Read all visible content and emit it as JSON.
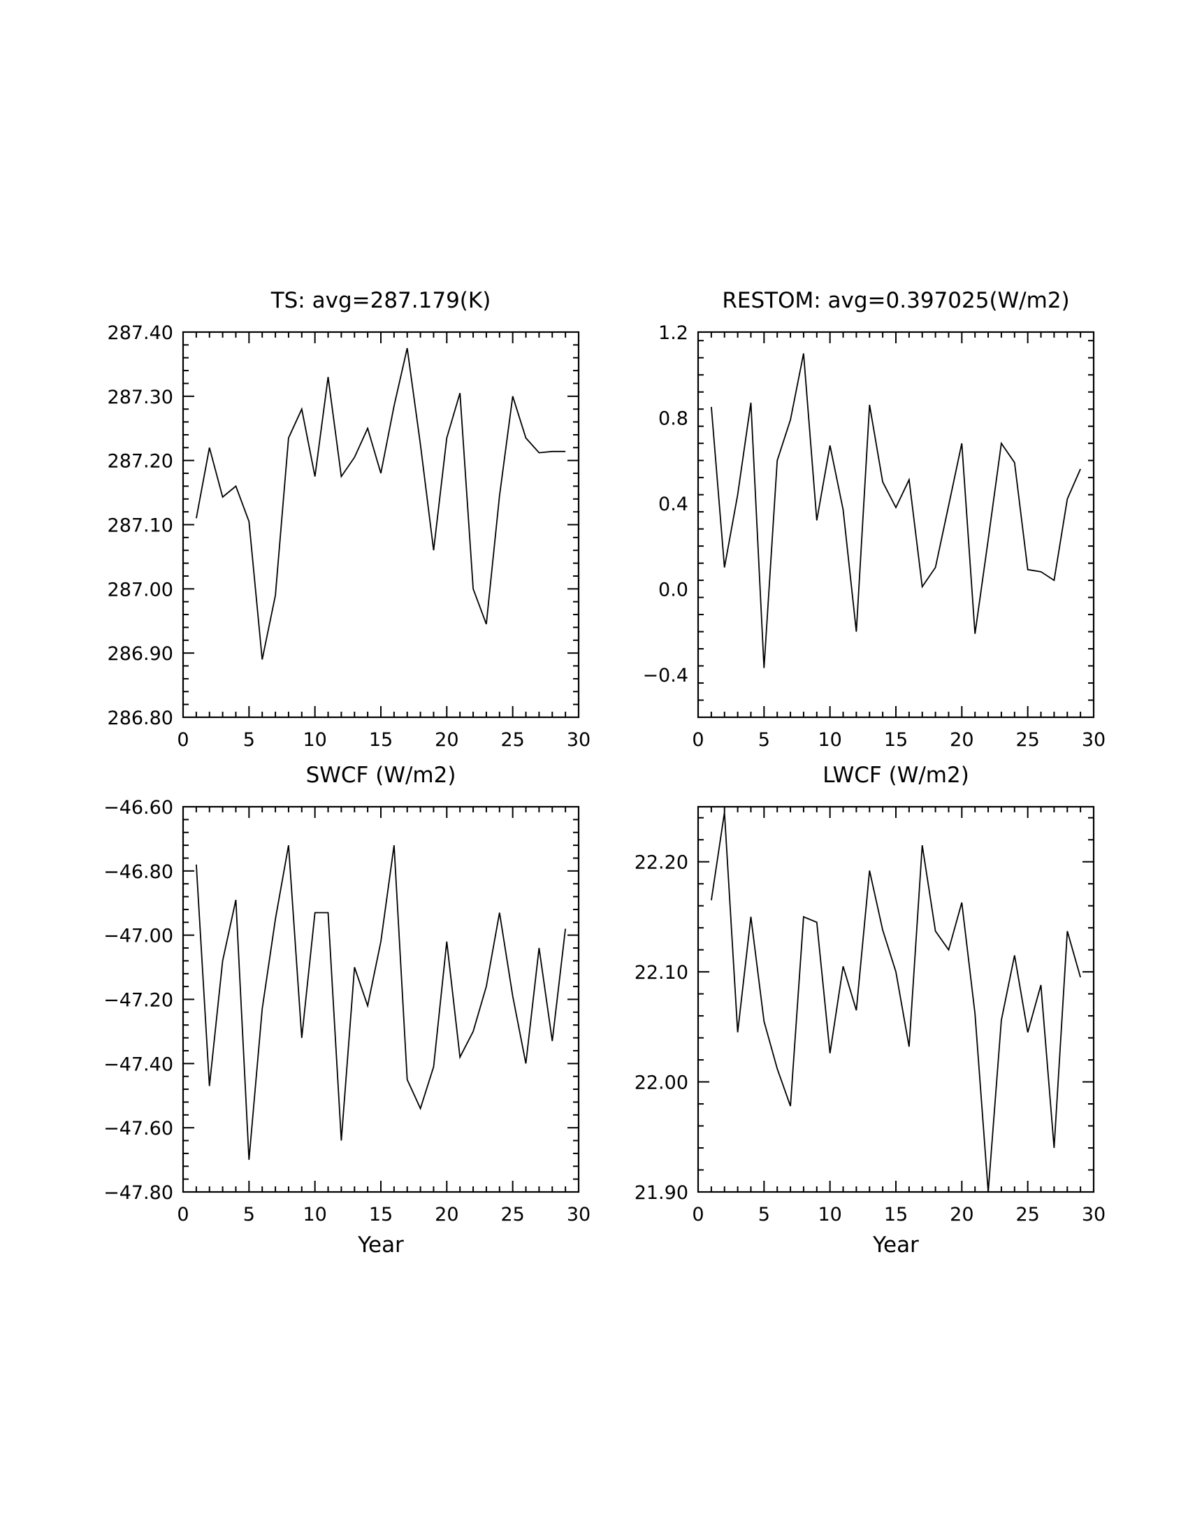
{
  "chart_data": [
    {
      "type": "line",
      "title": "TS: avg=287.179(K)",
      "xlabel": "",
      "ylabel": "",
      "xlim": [
        0,
        30
      ],
      "ylim": [
        286.8,
        287.4
      ],
      "xticks": [
        0,
        5,
        10,
        15,
        20,
        25,
        30
      ],
      "xtick_labels": [
        "0",
        "5",
        "10",
        "15",
        "20",
        "25",
        "30"
      ],
      "yticks": [
        286.8,
        286.9,
        287.0,
        287.1,
        287.2,
        287.3,
        287.4
      ],
      "ytick_labels": [
        "286.80",
        "286.90",
        "287.00",
        "287.10",
        "287.20",
        "287.30",
        "287.40"
      ],
      "x": [
        1,
        2,
        3,
        4,
        5,
        6,
        7,
        8,
        9,
        10,
        11,
        12,
        13,
        14,
        15,
        16,
        17,
        18,
        19,
        20,
        21,
        22,
        23,
        24,
        25,
        26,
        27,
        28,
        29
      ],
      "series": [
        {
          "name": "TS",
          "values": [
            287.11,
            287.22,
            287.143,
            287.16,
            287.105,
            286.89,
            286.99,
            287.235,
            287.28,
            287.175,
            287.33,
            287.175,
            287.205,
            287.25,
            287.18,
            287.285,
            287.375,
            287.225,
            287.06,
            287.235,
            287.305,
            287.0,
            286.945,
            287.145,
            287.3,
            287.235,
            287.212,
            287.214,
            287.214
          ]
        }
      ]
    },
    {
      "type": "line",
      "title": "RESTOM: avg=0.397025(W/m2)",
      "xlabel": "",
      "ylabel": "",
      "xlim": [
        0,
        30
      ],
      "ylim": [
        -0.6,
        1.2
      ],
      "xticks": [
        0,
        5,
        10,
        15,
        20,
        25,
        30
      ],
      "xtick_labels": [
        "0",
        "5",
        "10",
        "15",
        "20",
        "25",
        "30"
      ],
      "yticks": [
        -0.4,
        0.0,
        0.4,
        0.8,
        1.2
      ],
      "ytick_labels": [
        "−0.4",
        "0.0",
        "0.4",
        "0.8",
        "1.2"
      ],
      "x": [
        1,
        2,
        3,
        4,
        5,
        6,
        7,
        8,
        9,
        10,
        11,
        12,
        13,
        14,
        15,
        16,
        17,
        18,
        19,
        20,
        21,
        22,
        23,
        24,
        25,
        26,
        27,
        28,
        29
      ],
      "series": [
        {
          "name": "RESTOM",
          "values": [
            0.85,
            0.1,
            0.44,
            0.87,
            -0.37,
            0.6,
            0.79,
            1.1,
            0.32,
            0.67,
            0.37,
            -0.2,
            0.86,
            0.5,
            0.38,
            0.51,
            0.01,
            0.1,
            0.39,
            0.68,
            -0.21,
            0.23,
            0.68,
            0.59,
            0.09,
            0.08,
            0.04,
            0.42,
            0.56
          ]
        }
      ]
    },
    {
      "type": "line",
      "title": "SWCF (W/m2)",
      "xlabel": "Year",
      "ylabel": "",
      "xlim": [
        0,
        30
      ],
      "ylim": [
        -47.8,
        -46.6
      ],
      "xticks": [
        0,
        5,
        10,
        15,
        20,
        25,
        30
      ],
      "xtick_labels": [
        "0",
        "5",
        "10",
        "15",
        "20",
        "25",
        "30"
      ],
      "yticks": [
        -47.8,
        -47.6,
        -47.4,
        -47.2,
        -47.0,
        -46.8,
        -46.6
      ],
      "ytick_labels": [
        "−47.80",
        "−47.60",
        "−47.40",
        "−47.20",
        "−47.00",
        "−46.80",
        "−46.60"
      ],
      "x": [
        1,
        2,
        3,
        4,
        5,
        6,
        7,
        8,
        9,
        10,
        11,
        12,
        13,
        14,
        15,
        16,
        17,
        18,
        19,
        20,
        21,
        22,
        23,
        24,
        25,
        26,
        27,
        28,
        29
      ],
      "series": [
        {
          "name": "SWCF",
          "values": [
            -46.78,
            -47.47,
            -47.08,
            -46.89,
            -47.7,
            -47.23,
            -46.95,
            -46.72,
            -47.32,
            -46.93,
            -46.93,
            -47.64,
            -47.1,
            -47.22,
            -47.02,
            -46.72,
            -47.45,
            -47.54,
            -47.41,
            -47.02,
            -47.38,
            -47.3,
            -47.16,
            -46.93,
            -47.19,
            -47.4,
            -47.04,
            -47.33,
            -46.98
          ]
        }
      ]
    },
    {
      "type": "line",
      "title": "LWCF (W/m2)",
      "xlabel": "Year",
      "ylabel": "",
      "xlim": [
        0,
        30
      ],
      "ylim": [
        21.9,
        22.25
      ],
      "xticks": [
        0,
        5,
        10,
        15,
        20,
        25,
        30
      ],
      "xtick_labels": [
        "0",
        "5",
        "10",
        "15",
        "20",
        "25",
        "30"
      ],
      "yticks": [
        21.9,
        22.0,
        22.1,
        22.2
      ],
      "ytick_labels": [
        "21.90",
        "22.00",
        "22.10",
        "22.20"
      ],
      "x": [
        1,
        2,
        3,
        4,
        5,
        6,
        7,
        8,
        9,
        10,
        11,
        12,
        13,
        14,
        15,
        16,
        17,
        18,
        19,
        20,
        21,
        22,
        23,
        24,
        25,
        26,
        27,
        28,
        29
      ],
      "series": [
        {
          "name": "LWCF",
          "values": [
            22.165,
            22.245,
            22.045,
            22.15,
            22.055,
            22.012,
            21.978,
            22.15,
            22.145,
            22.026,
            22.105,
            22.065,
            22.192,
            22.138,
            22.1,
            22.032,
            22.215,
            22.137,
            22.12,
            22.163,
            22.062,
            21.9,
            22.056,
            22.115,
            22.045,
            22.088,
            21.94,
            22.137,
            22.095
          ]
        }
      ]
    }
  ]
}
